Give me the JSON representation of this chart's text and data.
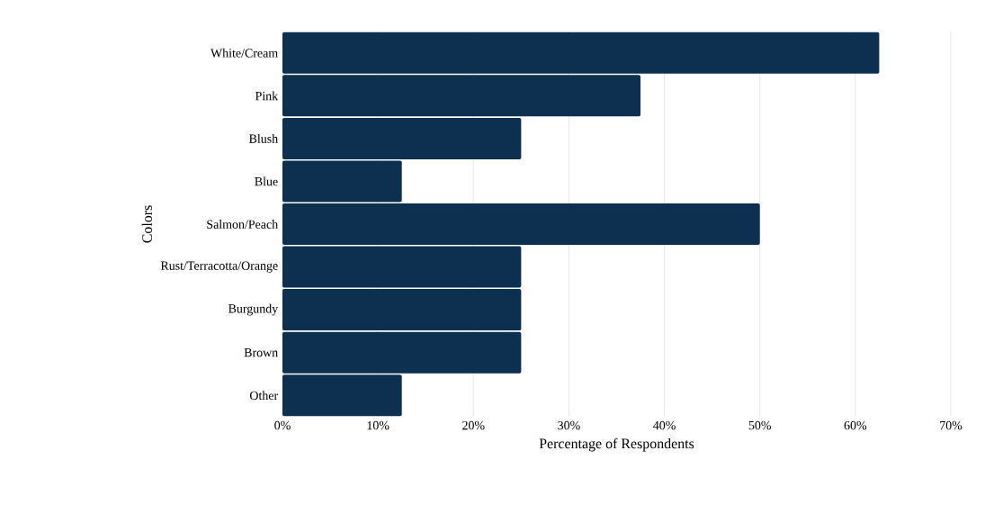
{
  "chart_data": {
    "type": "bar",
    "orientation": "horizontal",
    "categories": [
      "White/Cream",
      "Pink",
      "Blush",
      "Blue",
      "Salmon/Peach",
      "Rust/Terracotta/Orange",
      "Burgundy",
      "Brown",
      "Other"
    ],
    "values": [
      62.5,
      37.5,
      25,
      12.5,
      50,
      25,
      25,
      25,
      12.5
    ],
    "color": "#0e3050",
    "xlim": [
      0,
      70
    ],
    "xticks": [
      {
        "value": 0,
        "label": "0%"
      },
      {
        "value": 10,
        "label": "10%"
      },
      {
        "value": 20,
        "label": "20%"
      },
      {
        "value": 30,
        "label": "30%"
      },
      {
        "value": 40,
        "label": "40%"
      },
      {
        "value": 50,
        "label": "50%"
      },
      {
        "value": 60,
        "label": "60%"
      },
      {
        "value": 70,
        "label": "70%"
      }
    ],
    "grid": "x",
    "xlabel": "Percentage of Respondents",
    "ylabel": "Colors"
  }
}
